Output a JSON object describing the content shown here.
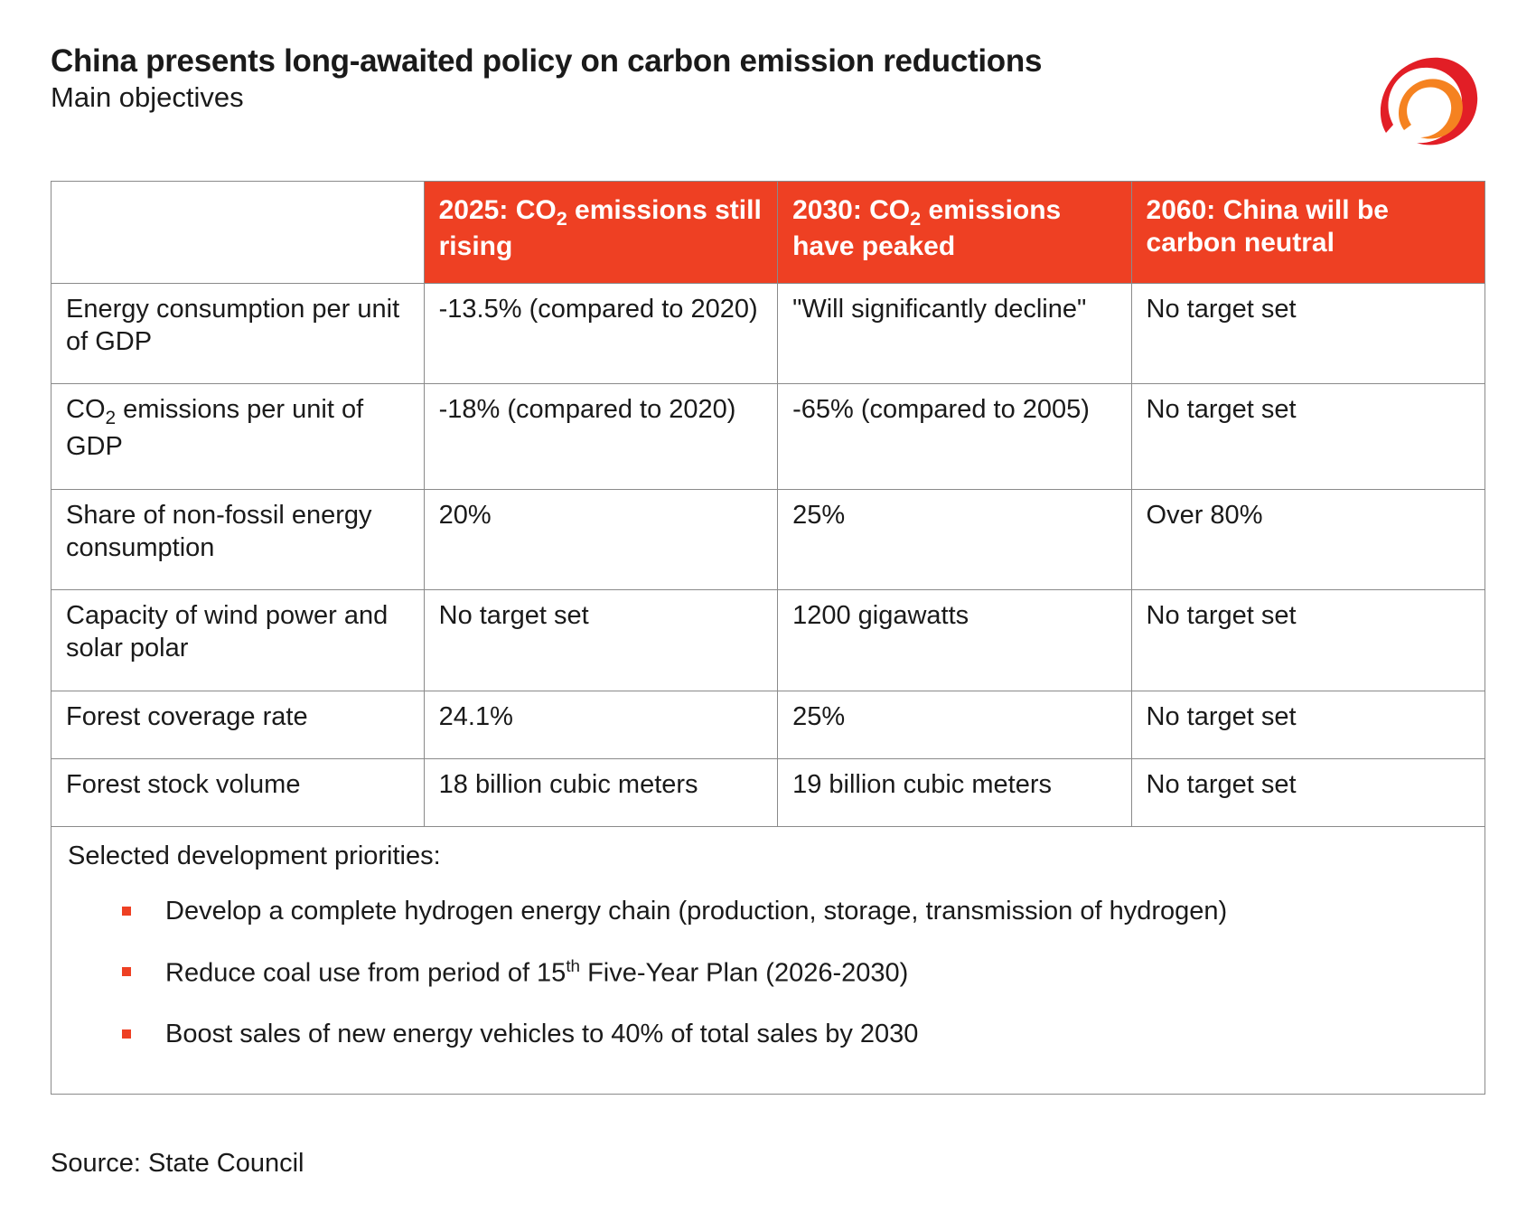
{
  "title": "China presents long-awaited policy on carbon emission reductions",
  "subtitle": "Main objectives",
  "colors": {
    "header_bg": "#ee4023",
    "header_fg": "#ffffff",
    "border": "#8a8a8a",
    "bullet": "#ee4023",
    "logo_outer": "#e21e26",
    "logo_inner": "#f58220"
  },
  "columns": [
    "",
    "2025: CO₂ emissions still rising",
    "2030: CO₂ emissions have peaked",
    "2060: China will be carbon neutral"
  ],
  "rows": [
    {
      "label": "Energy consumption per unit of GDP",
      "c2025": "-13.5% (compared to 2020)",
      "c2030": "\"Will significantly decline\"",
      "c2060": "No target set"
    },
    {
      "label": "CO₂ emissions per unit of GDP",
      "c2025": "-18% (compared to 2020)",
      "c2030": "-65% (compared to 2005)",
      "c2060": "No target set"
    },
    {
      "label": "Share of non-fossil energy consumption",
      "c2025": "20%",
      "c2030": "25%",
      "c2060": "Over 80%"
    },
    {
      "label": "Capacity of wind power and solar polar",
      "c2025": "No target set",
      "c2030": "1200 gigawatts",
      "c2060": "No target set"
    },
    {
      "label": "Forest coverage rate",
      "c2025": "24.1%",
      "c2030": "25%",
      "c2060": "No target set"
    },
    {
      "label": "Forest stock volume",
      "c2025": "18 billion cubic meters",
      "c2030": "19 billion cubic meters",
      "c2060": "No target set"
    }
  ],
  "priorities": {
    "heading": "Selected development priorities:",
    "items": [
      "Develop a complete hydrogen energy chain (production, storage, transmission of hydrogen)",
      "Reduce coal use from period of 15th Five-Year Plan (2026-2030)",
      "Boost sales of new energy vehicles to 40% of total sales by 2030"
    ]
  },
  "source": "Source: State Council"
}
